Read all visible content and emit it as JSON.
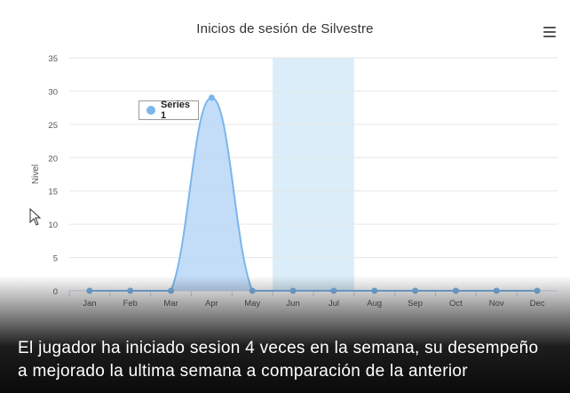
{
  "chart_data": {
    "type": "area",
    "title": "Inicios de sesión de Silvestre",
    "ylabel": "Nivel",
    "xlabel": "",
    "categories": [
      "Jan",
      "Feb",
      "Mar",
      "Apr",
      "May",
      "Jun",
      "Jul",
      "Aug",
      "Sep",
      "Oct",
      "Nov",
      "Dec"
    ],
    "series": [
      {
        "name": "Series 1",
        "values": [
          0,
          0,
          0,
          29,
          0,
          0,
          0,
          0,
          0,
          0,
          0,
          0
        ]
      }
    ],
    "ylim": [
      0,
      35
    ],
    "yticks": [
      0,
      5,
      10,
      15,
      20,
      25,
      30,
      35
    ],
    "plot_band": {
      "from": "Jun",
      "to": "Jul"
    },
    "grid": true,
    "legend_placement": "top-left"
  },
  "colors": {
    "series": "#7cb5ec",
    "area": "#b9d7f7",
    "band": "#daedf8",
    "grid": "#e6e6e6"
  },
  "menu_icon": "hamburger-menu-icon",
  "cursor_icon": "mouse-pointer-icon",
  "caption": {
    "line1": "El jugador ha iniciado sesion 4 veces en la semana, su desempeño",
    "line2": "a mejorado la ultima semana a comparación de la anterior"
  }
}
